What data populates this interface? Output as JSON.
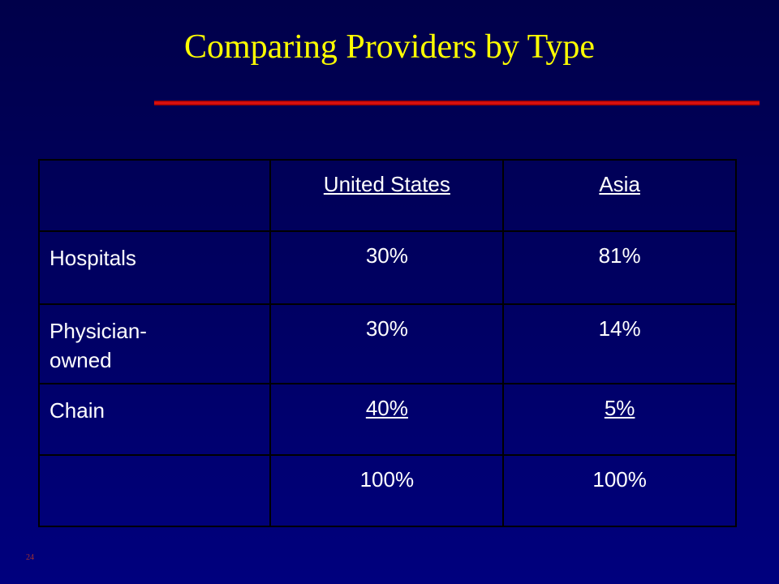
{
  "header": {
    "title": "Comparing Providers by Type"
  },
  "table": {
    "columns": [
      "United States",
      "Asia"
    ],
    "rows": [
      {
        "label": "Hospitals",
        "cells": [
          "30%",
          "81%"
        ]
      },
      {
        "label": "Physician-owned",
        "cells": [
          "30%",
          "14%"
        ]
      },
      {
        "label": "Chain",
        "cells": [
          "40%",
          "5%"
        ],
        "underline": true
      },
      {
        "cells": [
          "100%",
          "100%"
        ]
      }
    ]
  },
  "footer": {
    "page_number": "24"
  }
}
